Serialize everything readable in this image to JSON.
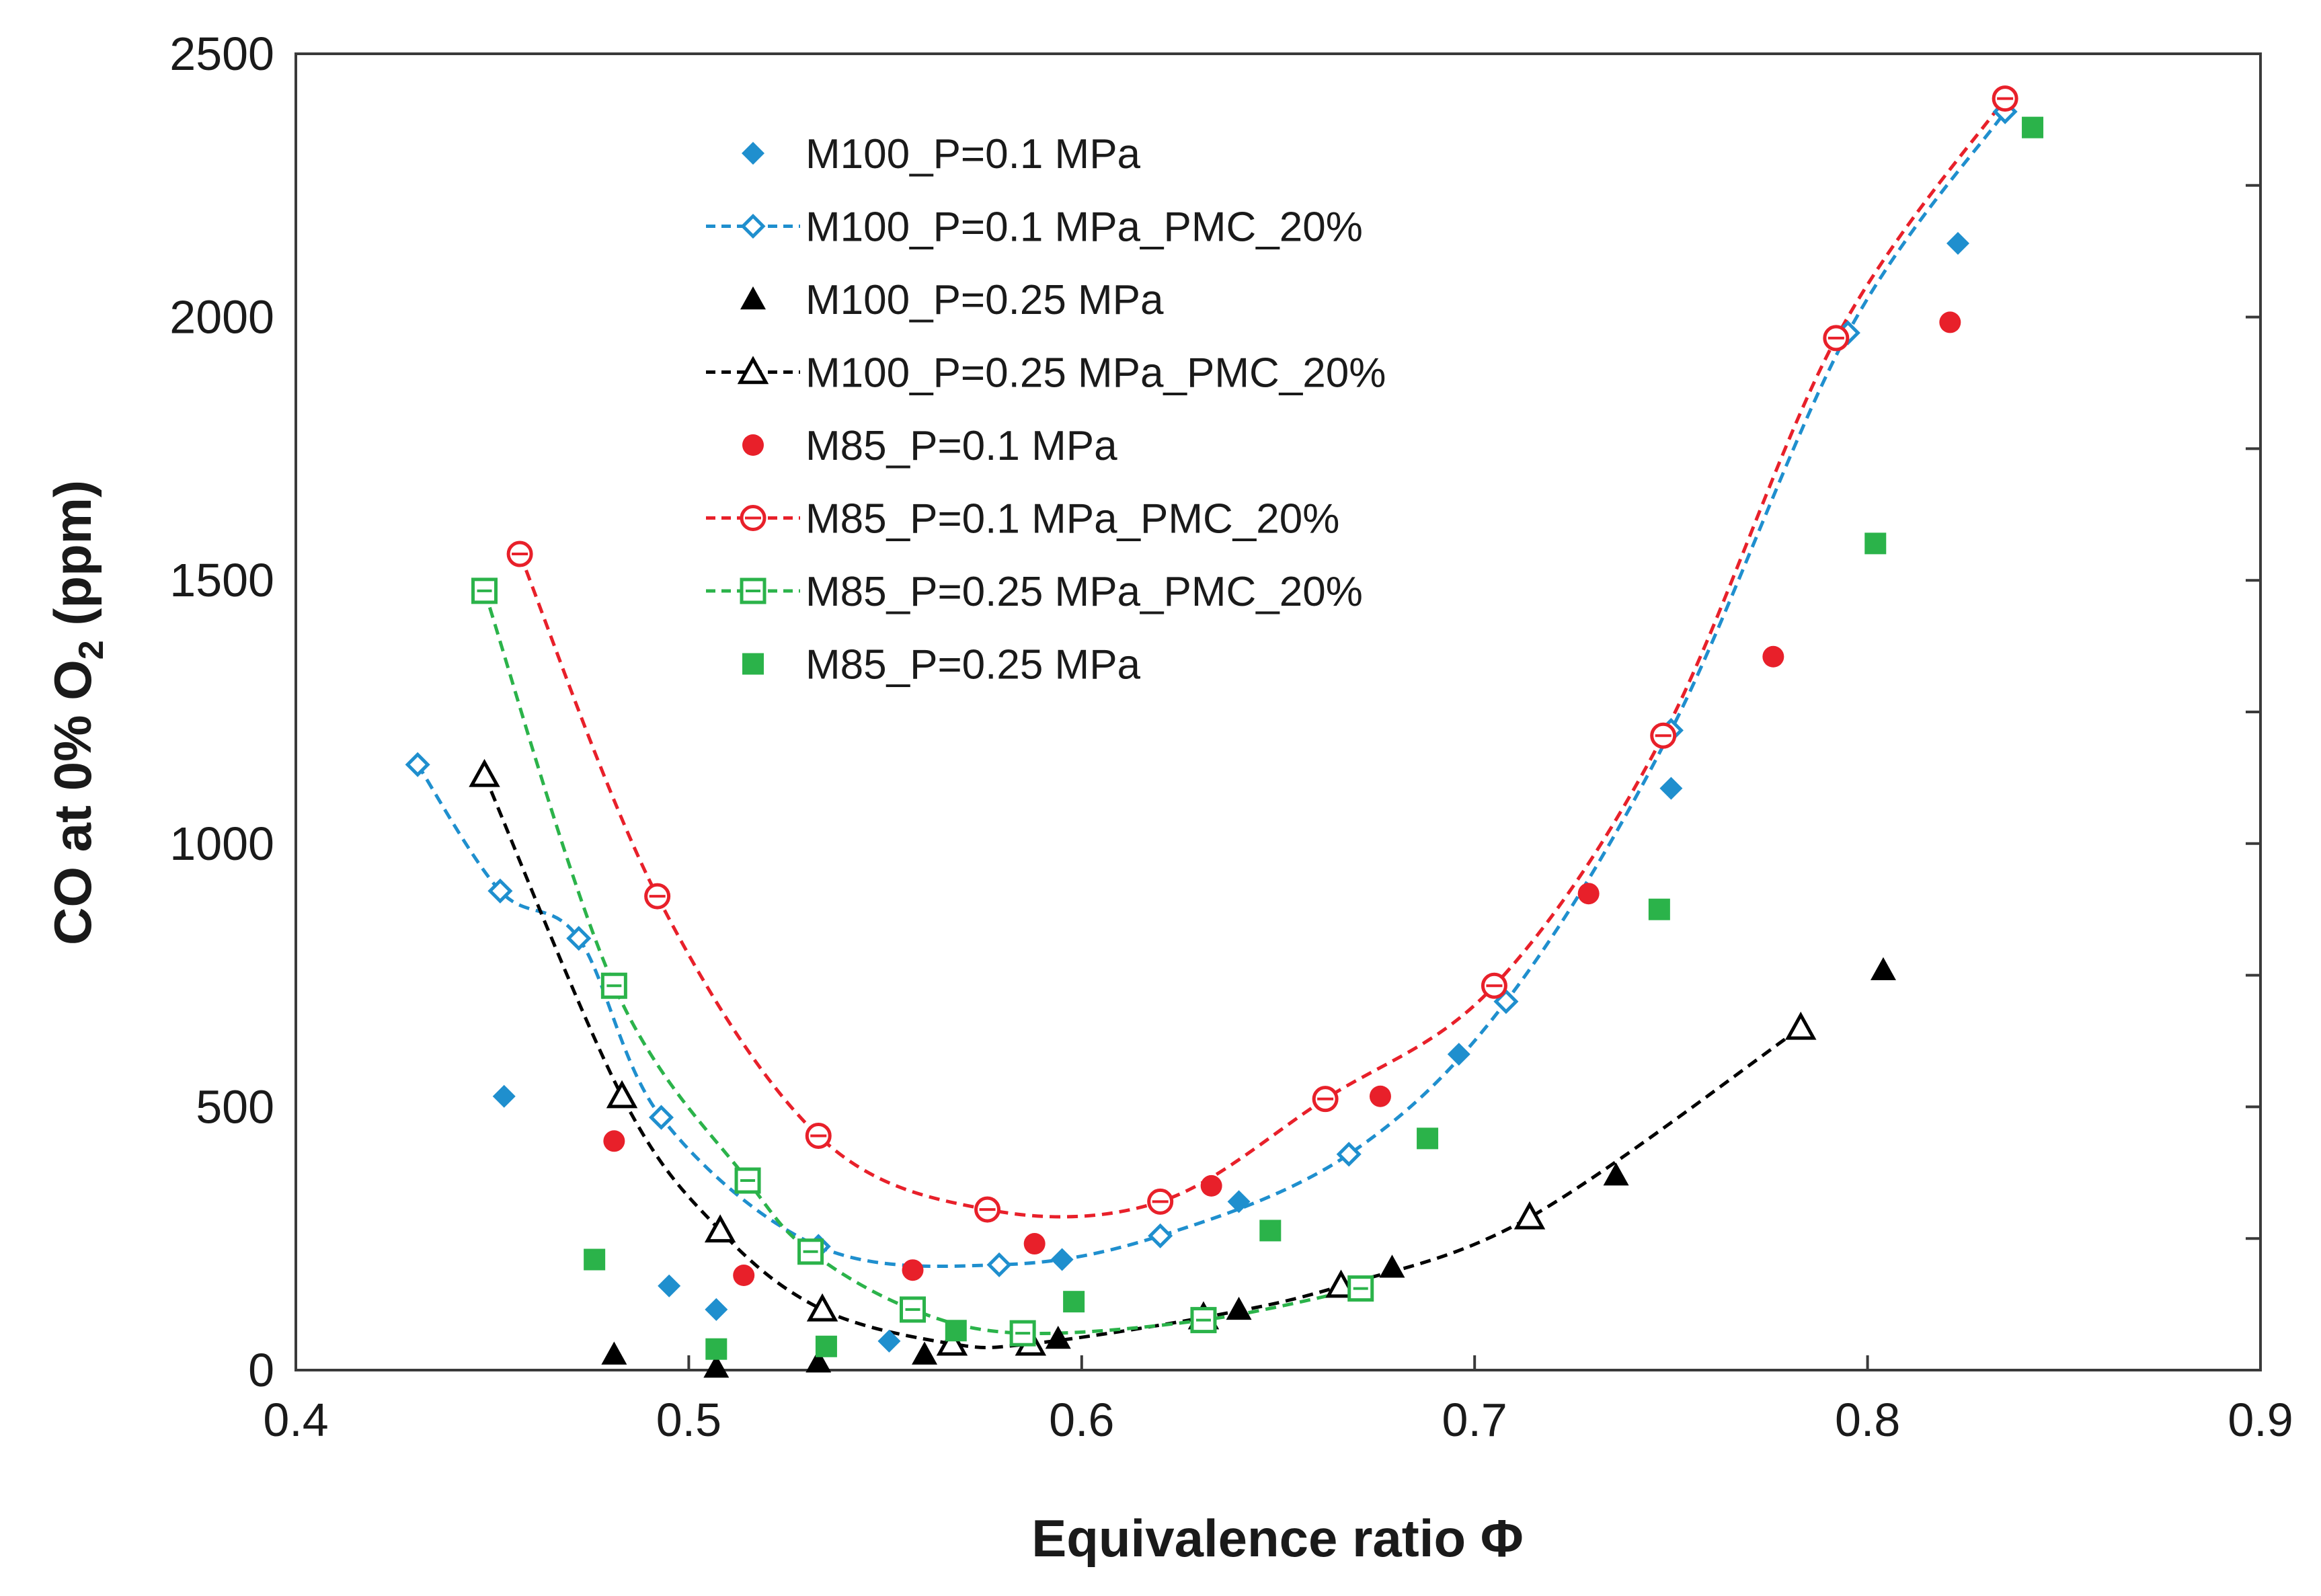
{
  "chart_data": {
    "type": "scatter",
    "title": "",
    "xlabel": "Equivalence ratio Φ",
    "ylabel": {
      "main": "CO at 0% O",
      "subscript": "2",
      "unit": " (ppm)"
    },
    "xlim": [
      0.4,
      0.9
    ],
    "ylim": [
      0,
      2500
    ],
    "xticks": [
      0.4,
      0.5,
      0.6,
      0.7,
      0.8,
      0.9
    ],
    "xtick_labels": [
      "0.4",
      "0.5",
      "0.6",
      "0.7",
      "0.8",
      "0.9"
    ],
    "yticks": [
      0,
      500,
      1000,
      1500,
      2000,
      2500
    ],
    "ytick_labels": [
      "0",
      "500",
      "1000",
      "1500",
      "2000",
      "2500"
    ],
    "grid": false,
    "legend_position": "top-left inside",
    "series": [
      {
        "name": "M100_P=0.1 MPa",
        "marker": "diamond",
        "filled": true,
        "color": "#1f8fce",
        "line": false,
        "x": [
          0.453,
          0.495,
          0.507,
          0.551,
          0.595,
          0.64,
          0.696,
          0.75,
          0.823
        ],
        "y": [
          520,
          160,
          115,
          55,
          210,
          320,
          600,
          1105,
          2140
        ]
      },
      {
        "name": "M100_P=0.1 MPa_PMC_20%",
        "marker": "diamond",
        "filled": false,
        "color": "#1f8fce",
        "line": true,
        "x": [
          0.431,
          0.452,
          0.472,
          0.493,
          0.533,
          0.579,
          0.62,
          0.668,
          0.708,
          0.75,
          0.795,
          0.835
        ],
        "y": [
          1150,
          910,
          820,
          480,
          235,
          200,
          255,
          410,
          700,
          1215,
          1970,
          2390
        ]
      },
      {
        "name": "M100_P=0.25 MPa",
        "marker": "triangle",
        "filled": true,
        "color": "#000000",
        "line": false,
        "x": [
          0.481,
          0.507,
          0.533,
          0.56,
          0.594,
          0.64,
          0.679,
          0.736,
          0.804
        ],
        "y": [
          30,
          5,
          15,
          30,
          60,
          115,
          195,
          370,
          760
        ]
      },
      {
        "name": "M100_P=0.25 MPa_PMC_20%",
        "marker": "triangle",
        "filled": false,
        "color": "#000000",
        "line": true,
        "x": [
          0.448,
          0.483,
          0.508,
          0.534,
          0.567,
          0.587,
          0.631,
          0.666,
          0.714,
          0.783
        ],
        "y": [
          1130,
          520,
          265,
          115,
          50,
          50,
          100,
          160,
          290,
          650
        ]
      },
      {
        "name": "M85_P=0.1 MPa",
        "marker": "circle",
        "filled": true,
        "color": "#e8202a",
        "line": false,
        "x": [
          0.481,
          0.514,
          0.557,
          0.588,
          0.633,
          0.676,
          0.729,
          0.776,
          0.821
        ],
        "y": [
          435,
          180,
          190,
          240,
          350,
          520,
          905,
          1355,
          1990
        ]
      },
      {
        "name": "M85_P=0.1 MPa_PMC_20%",
        "marker": "circle",
        "filled": false,
        "color": "#e8202a",
        "line": true,
        "x": [
          0.457,
          0.492,
          0.533,
          0.576,
          0.62,
          0.662,
          0.705,
          0.748,
          0.792,
          0.835
        ],
        "y": [
          1550,
          900,
          445,
          305,
          320,
          515,
          730,
          1205,
          1960,
          2415
        ]
      },
      {
        "name": "M85_P=0.25 MPa_PMC_20%",
        "marker": "square",
        "filled": false,
        "color": "#2bb34a",
        "line": true,
        "x": [
          0.448,
          0.481,
          0.515,
          0.531,
          0.557,
          0.585,
          0.631,
          0.671
        ],
        "y": [
          1480,
          730,
          360,
          225,
          115,
          70,
          95,
          155
        ]
      },
      {
        "name": "M85_P=0.25 MPa",
        "marker": "square",
        "filled": true,
        "color": "#2bb34a",
        "line": false,
        "x": [
          0.476,
          0.507,
          0.535,
          0.568,
          0.598,
          0.648,
          0.688,
          0.747,
          0.802,
          0.842
        ],
        "y": [
          210,
          40,
          45,
          75,
          130,
          265,
          440,
          875,
          1570,
          2360
        ]
      }
    ]
  }
}
